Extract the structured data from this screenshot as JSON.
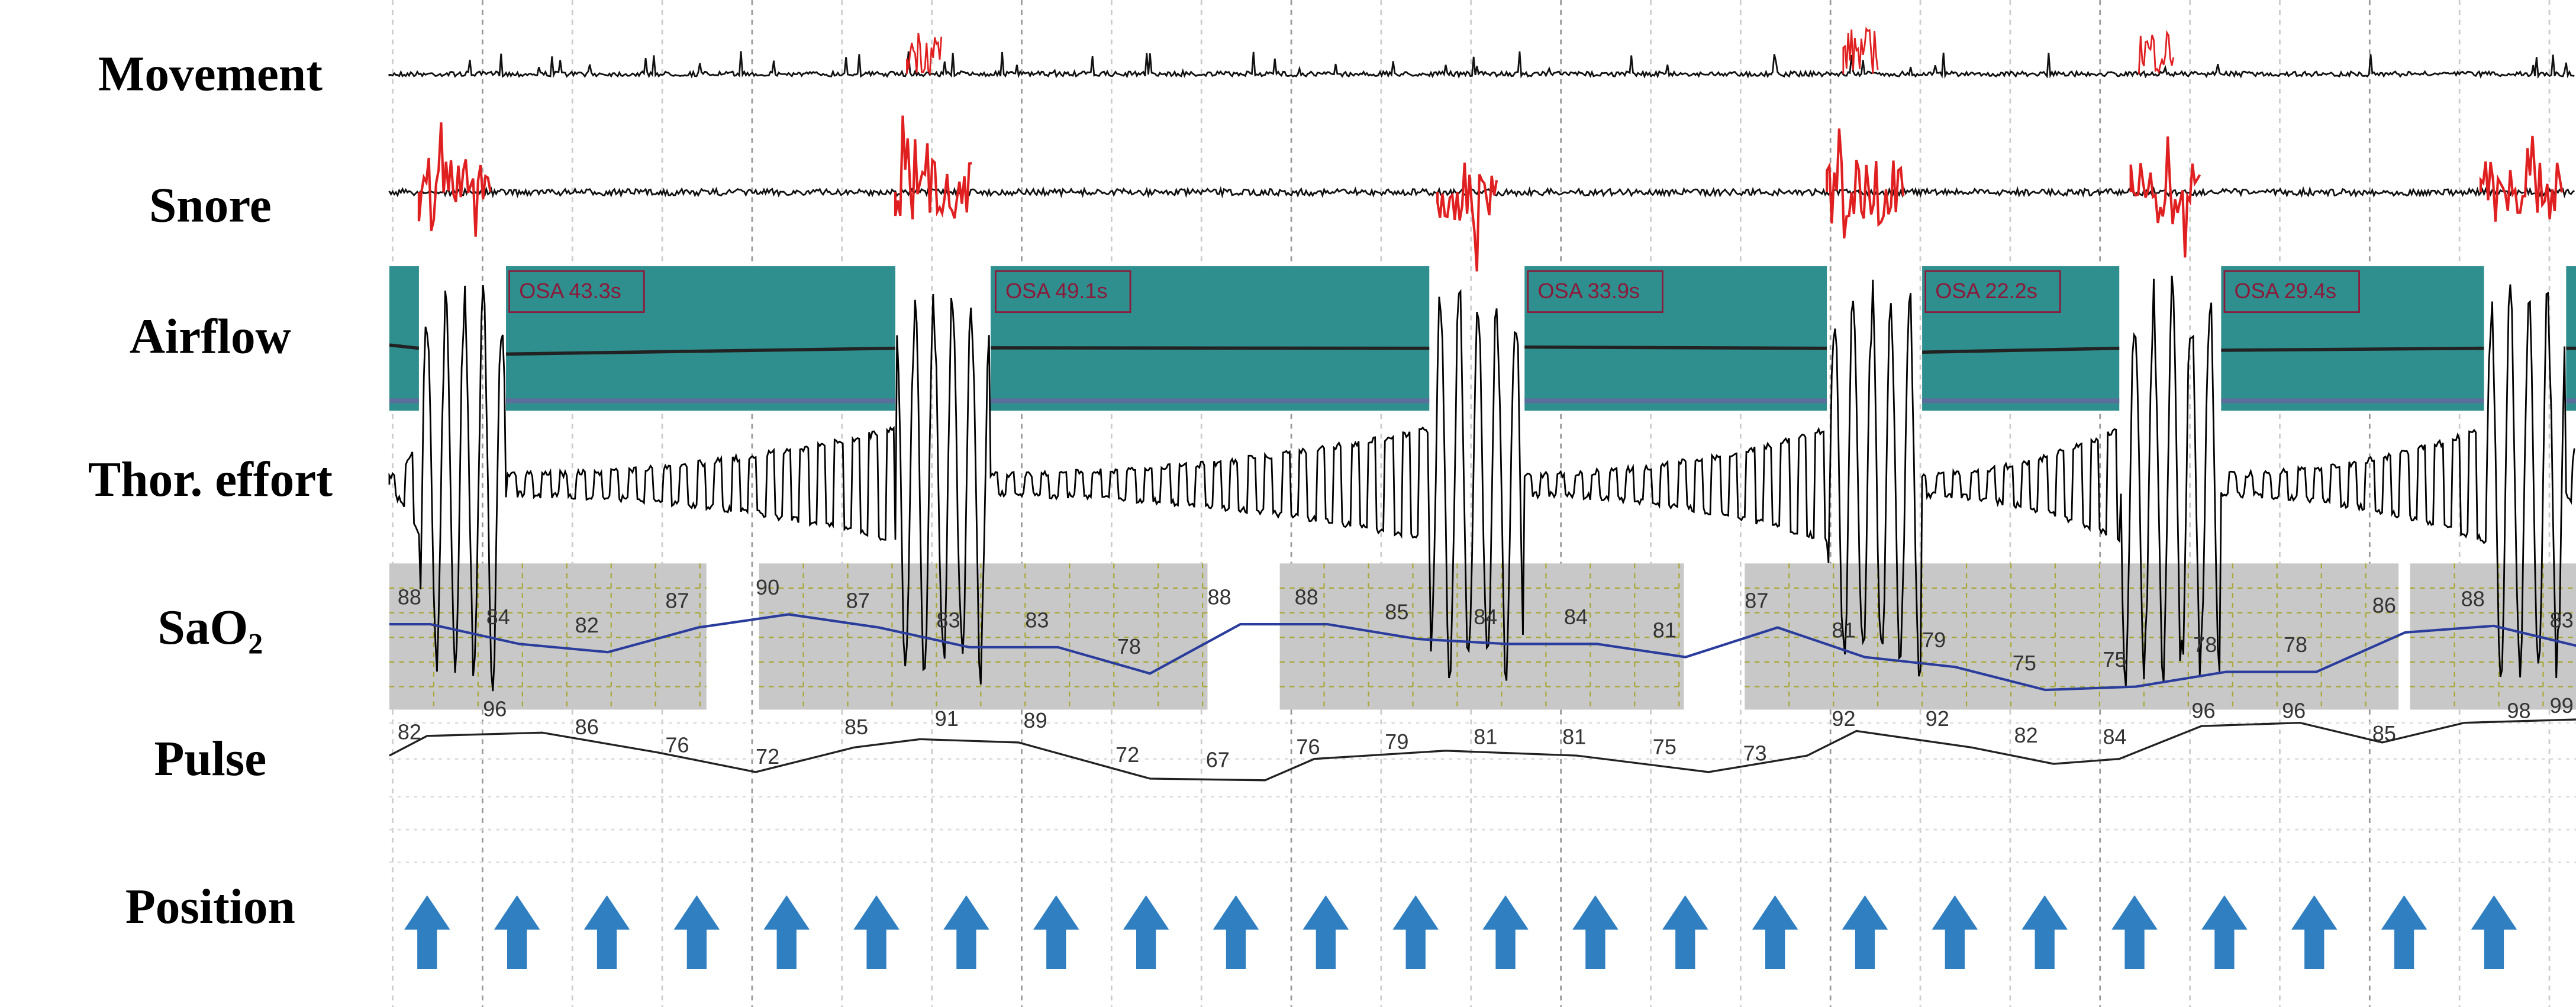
{
  "channels": [
    "Movement",
    "Snore",
    "Airflow",
    "Thor. effort",
    "SaO₂",
    "Pulse",
    "Position"
  ],
  "events": [
    "OSA 43.3s",
    "OSA 49.1s",
    "OSA 33.9s",
    "OSA 22.2s",
    "OSA 29.4s"
  ],
  "sao2_labels": [
    "88",
    "84",
    "82",
    "87",
    "90",
    "87",
    "83",
    "83",
    "78",
    "88",
    "88",
    "85",
    "84",
    "84",
    "81",
    "87",
    "81",
    "79",
    "75",
    "75",
    "78",
    "78",
    "86",
    "88",
    "83"
  ],
  "pulse_labels": [
    "82",
    "96",
    "86",
    "76",
    "72",
    "85",
    "91",
    "89",
    "72",
    "67",
    "76",
    "79",
    "81",
    "81",
    "75",
    "73",
    "92",
    "92",
    "82",
    "84",
    "96",
    "96",
    "85",
    "98",
    "99"
  ]
}
